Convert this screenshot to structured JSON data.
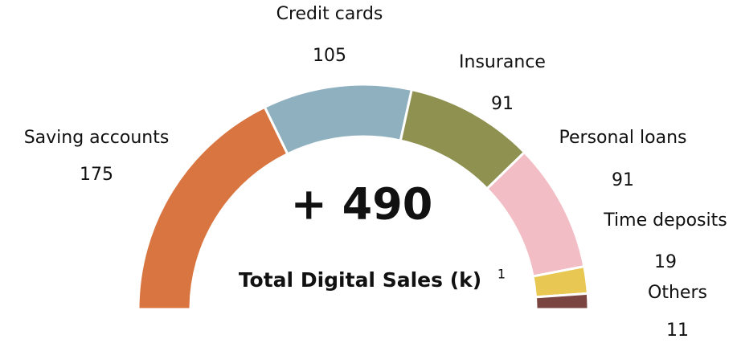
{
  "chart_data": {
    "type": "semi-donut",
    "center_value": "+ 490",
    "center_label": "Total Digital Sales (k)",
    "footnote_marker": "1",
    "categories": [
      "Saving accounts",
      "Credit cards",
      "Insurance",
      "Personal loans",
      "Time deposits",
      "Others"
    ],
    "values": [
      175,
      105,
      91,
      91,
      19,
      11
    ],
    "colors": [
      "#d97540",
      "#8fb0bf",
      "#8f9150",
      "#f2bdc4",
      "#e8c853",
      "#7a4541"
    ]
  }
}
